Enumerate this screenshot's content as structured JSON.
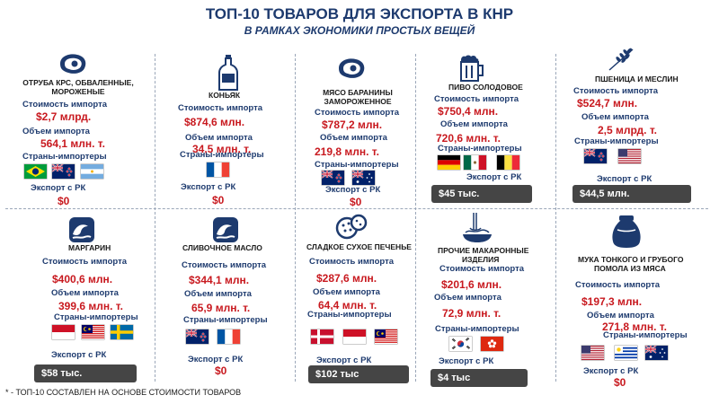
{
  "header": {
    "title": "ТОП-10 ТОВАРОВ ДЛЯ ЭКСПОРТА В КНР",
    "subtitle": "В РАМКАХ ЭКОНОМИКИ ПРОСТЫХ ВЕЩЕЙ"
  },
  "labels": {
    "cost": "Стоимость импорта",
    "volume": "Объем импорта",
    "countries": "Страны-импортеры",
    "export": "Экспорт с РК"
  },
  "products": [
    {
      "name_1": "ОТРУБА КРС, ОБВАЛЕННЫЕ,",
      "name_2": "МОРОЖЕНЫЕ",
      "cost": "$2,7  млрд.",
      "volume": "564,1 млн. т.",
      "export": "$0",
      "icon": "steak-icon",
      "flags": [
        "brazil",
        "new-zealand",
        "argentina"
      ]
    },
    {
      "name_1": "КОНЬЯК",
      "cost": "$874,6  млн.",
      "volume": "34,5 млн. т.",
      "export": "$0",
      "icon": "bottle-icon",
      "flags": [
        "france"
      ]
    },
    {
      "name_1": "МЯСО БАРАНИНЫ",
      "name_2": "ЗАМОРОЖЕННОЕ",
      "cost": "$787,2  млн.",
      "volume": "219,8 млн. т.",
      "export": "$0",
      "icon": "steak-icon",
      "flags": [
        "new-zealand",
        "australia"
      ]
    },
    {
      "name_1": "ПИВО СОЛОДОВОЕ",
      "cost": "$750,4  млн.",
      "volume": "720,6 млн. т.",
      "export": "$45 тыс.",
      "icon": "beer-mug-icon",
      "flags": [
        "germany",
        "mexico",
        "belgium"
      ]
    },
    {
      "name_1": "ПШЕНИЦА И МЕСЛИН",
      "cost": "$524,7  млн.",
      "volume": "2,5 млрд. т.",
      "export": "$44,5 млн.",
      "icon": "wheat-icon",
      "flags": [
        "new-zealand",
        "usa"
      ]
    },
    {
      "name_1": "МАРГАРИН",
      "cost": "$400,6  млн.",
      "volume": "399,6 млн. т.",
      "export": "$58 тыс.",
      "icon": "wave-icon",
      "flags": [
        "indonesia",
        "malaysia",
        "sweden"
      ]
    },
    {
      "name_1": "СЛИВОЧНОЕ МАСЛО",
      "cost": "$344,1  млн.",
      "volume": "65,9 млн. т.",
      "export": "$0",
      "icon": "wave-icon",
      "flags": [
        "new-zealand",
        "france"
      ]
    },
    {
      "name_1": "СЛАДКОЕ СУХОЕ ПЕЧЕНЬЕ",
      "cost": "$287,6  млн.",
      "volume": "64,4 млн. т.",
      "export": "$102 тыс",
      "icon": "cookies-icon",
      "flags": [
        "denmark",
        "indonesia",
        "malaysia"
      ]
    },
    {
      "name_1": "ПРОЧИЕ МАКАРОННЫЕ",
      "name_2": "ИЗДЕЛИЯ",
      "cost": "$201,6  млн.",
      "volume": "72,9 млн. т.",
      "export": "$4 тыс",
      "icon": "noodles-icon",
      "flags": [
        "south-korea",
        "hong-kong"
      ]
    },
    {
      "name_1": "МУКА ТОНКОГО И ГРУБОГО",
      "name_2": "ПОМОЛА ИЗ МЯСА",
      "cost": "$197,3  млн.",
      "volume": "271,8 млн. т.",
      "export": "$0",
      "icon": "flour-sack-icon",
      "flags": [
        "usa",
        "uruguay",
        "australia"
      ]
    }
  ],
  "footnote": "* - ТОП-10 СОСТАВЛЕН НА ОСНОВЕ СТОИМОСТИ ТОВАРОВ",
  "colors": {
    "navy": "#1d3a6e",
    "red": "#c8191f",
    "box": "#454545"
  }
}
